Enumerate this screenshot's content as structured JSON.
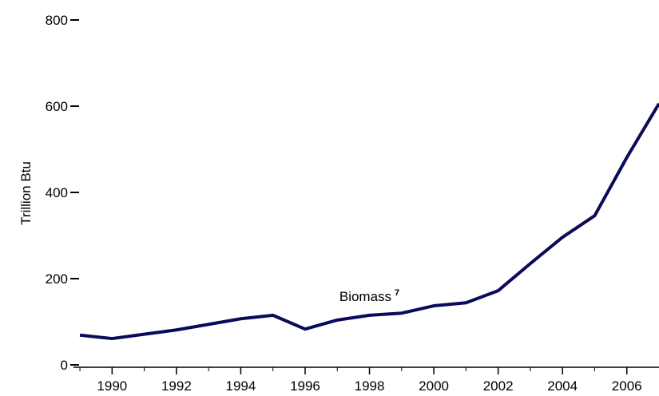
{
  "chart_data": {
    "type": "line",
    "ylabel": "Trillion Btu",
    "x": [
      1989,
      1990,
      1991,
      1992,
      1993,
      1994,
      1995,
      1996,
      1997,
      1998,
      1999,
      2000,
      2001,
      2002,
      2003,
      2004,
      2005,
      2006,
      2007
    ],
    "series": [
      {
        "name": "Biomass",
        "color": "#0a0a5a",
        "values": [
          69,
          61,
          71,
          81,
          94,
          107,
          115,
          83,
          104,
          115,
          120,
          137,
          144,
          172,
          235,
          296,
          346,
          481,
          606
        ]
      }
    ],
    "annotation": {
      "text": "Biomass",
      "superscript": "7",
      "x": 1998,
      "y": 148
    },
    "xlim": [
      1988.8,
      2007
    ],
    "xticks": [
      1990,
      1992,
      1994,
      1996,
      1998,
      2000,
      2002,
      2004,
      2006
    ],
    "xminorticks": [
      1989,
      1990,
      1991,
      1992,
      1993,
      1994,
      1995,
      1996,
      1997,
      1998,
      1999,
      2000,
      2001,
      2002,
      2003,
      2004,
      2005,
      2006
    ],
    "ylim": [
      0,
      800
    ],
    "yticks": [
      0,
      200,
      400,
      600,
      800
    ]
  }
}
